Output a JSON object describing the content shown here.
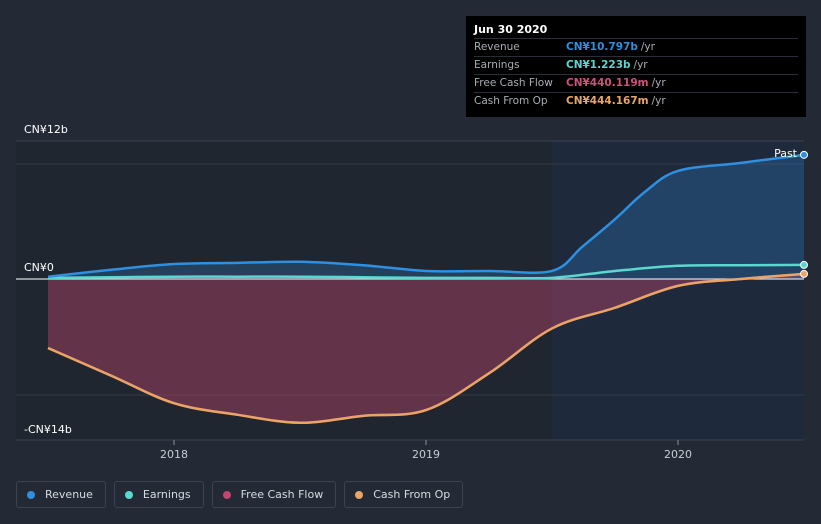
{
  "chart_data": {
    "type": "area",
    "title": "",
    "y_unit": "CN¥ billions",
    "ylim": [
      -14,
      12
    ],
    "y_tick_labels": [
      {
        "value": 12,
        "label": "CN¥12b"
      },
      {
        "value": 0,
        "label": "CN¥0"
      },
      {
        "value": -14,
        "label": "-CN¥14b"
      }
    ],
    "xlim": [
      2017.5,
      2020.5
    ],
    "x_ticks": [
      {
        "value": 2018.0,
        "label": "2018"
      },
      {
        "value": 2019.0,
        "label": "2019"
      },
      {
        "value": 2020.0,
        "label": "2020"
      }
    ],
    "past_start": 2019.5,
    "past_label": "Past",
    "series": [
      {
        "key": "revenue",
        "name": "Revenue",
        "color": "#2f8fe0",
        "points": [
          [
            2017.5,
            0.2
          ],
          [
            2017.75,
            0.8
          ],
          [
            2018.0,
            1.3
          ],
          [
            2018.25,
            1.4
          ],
          [
            2018.5,
            1.5
          ],
          [
            2018.75,
            1.2
          ],
          [
            2019.0,
            0.7
          ],
          [
            2019.25,
            0.7
          ],
          [
            2019.5,
            0.7
          ],
          [
            2019.62,
            2.8
          ],
          [
            2019.75,
            5.2
          ],
          [
            2019.87,
            7.6
          ],
          [
            2020.0,
            9.4
          ],
          [
            2020.25,
            10.1
          ],
          [
            2020.5,
            10.797
          ]
        ]
      },
      {
        "key": "earnings",
        "name": "Earnings",
        "color": "#5ad8d0",
        "points": [
          [
            2017.5,
            0.1
          ],
          [
            2017.75,
            0.15
          ],
          [
            2018.0,
            0.2
          ],
          [
            2018.25,
            0.2
          ],
          [
            2018.5,
            0.2
          ],
          [
            2018.75,
            0.15
          ],
          [
            2019.0,
            0.1
          ],
          [
            2019.25,
            0.1
          ],
          [
            2019.5,
            0.1
          ],
          [
            2019.75,
            0.7
          ],
          [
            2020.0,
            1.15
          ],
          [
            2020.25,
            1.2
          ],
          [
            2020.5,
            1.223
          ]
        ]
      },
      {
        "key": "fcf",
        "name": "Free Cash Flow",
        "color": "#c2456e",
        "points": [
          [
            2017.5,
            -6.0
          ],
          [
            2017.75,
            -8.4
          ],
          [
            2018.0,
            -10.8
          ],
          [
            2018.25,
            -11.8
          ],
          [
            2018.5,
            -12.5
          ],
          [
            2018.75,
            -11.9
          ],
          [
            2019.0,
            -11.4
          ],
          [
            2019.25,
            -8.2
          ],
          [
            2019.5,
            -4.3
          ],
          [
            2019.75,
            -2.5
          ],
          [
            2020.0,
            -0.6
          ],
          [
            2020.25,
            0.0
          ],
          [
            2020.5,
            0.44
          ]
        ]
      },
      {
        "key": "cfo",
        "name": "Cash From Op",
        "color": "#e8a566",
        "points": [
          [
            2017.5,
            -6.0
          ],
          [
            2017.75,
            -8.4
          ],
          [
            2018.0,
            -10.8
          ],
          [
            2018.25,
            -11.8
          ],
          [
            2018.5,
            -12.5
          ],
          [
            2018.75,
            -11.9
          ],
          [
            2019.0,
            -11.4
          ],
          [
            2019.25,
            -8.2
          ],
          [
            2019.5,
            -4.3
          ],
          [
            2019.75,
            -2.5
          ],
          [
            2020.0,
            -0.6
          ],
          [
            2020.25,
            0.0
          ],
          [
            2020.5,
            0.444
          ]
        ]
      }
    ],
    "tooltip": {
      "date": "Jun 30 2020",
      "rows": [
        {
          "name": "Revenue",
          "value": "CN¥10.797b",
          "unit": "/yr",
          "color": "#2f8fe0"
        },
        {
          "name": "Earnings",
          "value": "CN¥1.223b",
          "unit": "/yr",
          "color": "#5ad8d0"
        },
        {
          "name": "Free Cash Flow",
          "value": "CN¥440.119m",
          "unit": "/yr",
          "color": "#c2456e"
        },
        {
          "name": "Cash From Op",
          "value": "CN¥444.167m",
          "unit": "/yr",
          "color": "#e8a566"
        }
      ]
    },
    "legend": [
      {
        "name": "Revenue",
        "color": "#2f8fe0"
      },
      {
        "name": "Earnings",
        "color": "#5ad8d0"
      },
      {
        "name": "Free Cash Flow",
        "color": "#c2456e"
      },
      {
        "name": "Cash From Op",
        "color": "#e8a566"
      }
    ]
  }
}
